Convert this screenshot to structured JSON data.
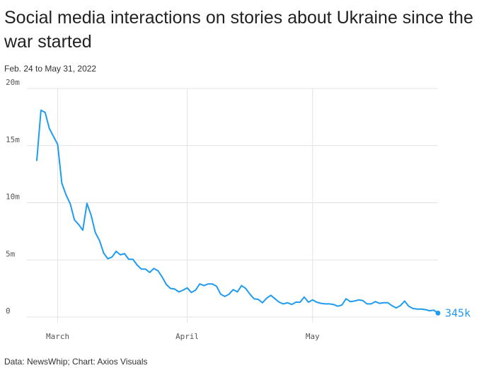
{
  "title": "Social media interactions on stories about Ukraine since the war started",
  "subtitle": "Feb. 24 to May 31, 2022",
  "source": "Data: NewsWhip; Chart: Axios Visuals",
  "colors": {
    "line": "#1f9bf0",
    "grid": "#e3e3e3",
    "text": "#222222"
  },
  "chart_data": {
    "type": "line",
    "title": "Social media interactions on stories about Ukraine since the war started",
    "subtitle": "Feb. 24 to May 31, 2022",
    "xlabel": "",
    "ylabel": "",
    "x_range": [
      "2022-02-24",
      "2022-05-31"
    ],
    "ylim": [
      0,
      20000000
    ],
    "y_ticks": [
      {
        "value": 0,
        "label": "0"
      },
      {
        "value": 5000000,
        "label": "5m"
      },
      {
        "value": 10000000,
        "label": "10m"
      },
      {
        "value": 15000000,
        "label": "15m"
      },
      {
        "value": 20000000,
        "label": "20m"
      }
    ],
    "x_ticks": [
      {
        "date": "2022-03-01",
        "label": "March"
      },
      {
        "date": "2022-04-01",
        "label": "April"
      },
      {
        "date": "2022-05-01",
        "label": "May"
      }
    ],
    "grid": true,
    "end_label": "345k",
    "series": [
      {
        "x": [
          "2022-02-24",
          "2022-02-25",
          "2022-02-26",
          "2022-02-27",
          "2022-02-28",
          "2022-03-01",
          "2022-03-02",
          "2022-03-03",
          "2022-03-04",
          "2022-03-05",
          "2022-03-06",
          "2022-03-07",
          "2022-03-08",
          "2022-03-09",
          "2022-03-10",
          "2022-03-11",
          "2022-03-12",
          "2022-03-13",
          "2022-03-14",
          "2022-03-15",
          "2022-03-16",
          "2022-03-17",
          "2022-03-18",
          "2022-03-19",
          "2022-03-20",
          "2022-03-21",
          "2022-03-22",
          "2022-03-23",
          "2022-03-24",
          "2022-03-25",
          "2022-03-26",
          "2022-03-27",
          "2022-03-28",
          "2022-03-29",
          "2022-03-30",
          "2022-03-31",
          "2022-04-01",
          "2022-04-02",
          "2022-04-03",
          "2022-04-04",
          "2022-04-05",
          "2022-04-06",
          "2022-04-07",
          "2022-04-08",
          "2022-04-09",
          "2022-04-10",
          "2022-04-11",
          "2022-04-12",
          "2022-04-13",
          "2022-04-14",
          "2022-04-15",
          "2022-04-16",
          "2022-04-17",
          "2022-04-18",
          "2022-04-19",
          "2022-04-20",
          "2022-04-21",
          "2022-04-22",
          "2022-04-23",
          "2022-04-24",
          "2022-04-25",
          "2022-04-26",
          "2022-04-27",
          "2022-04-28",
          "2022-04-29",
          "2022-04-30",
          "2022-05-01",
          "2022-05-02",
          "2022-05-03",
          "2022-05-04",
          "2022-05-05",
          "2022-05-06",
          "2022-05-07",
          "2022-05-08",
          "2022-05-09",
          "2022-05-10",
          "2022-05-11",
          "2022-05-12",
          "2022-05-13",
          "2022-05-14",
          "2022-05-15",
          "2022-05-16",
          "2022-05-17",
          "2022-05-18",
          "2022-05-19",
          "2022-05-20",
          "2022-05-21",
          "2022-05-22",
          "2022-05-23",
          "2022-05-24",
          "2022-05-25",
          "2022-05-26",
          "2022-05-27",
          "2022-05-28",
          "2022-05-29",
          "2022-05-30",
          "2022-05-31"
        ],
        "values": [
          13700000,
          18100000,
          17900000,
          16500000,
          15800000,
          15100000,
          11700000,
          10700000,
          9900000,
          8500000,
          8100000,
          7600000,
          9950000,
          8900000,
          7400000,
          6700000,
          5600000,
          5100000,
          5250000,
          5750000,
          5450000,
          5550000,
          5050000,
          5050000,
          4550000,
          4200000,
          4200000,
          3900000,
          4250000,
          4050000,
          3500000,
          2850000,
          2500000,
          2450000,
          2200000,
          2350000,
          2550000,
          2150000,
          2350000,
          2900000,
          2750000,
          2900000,
          2900000,
          2700000,
          2000000,
          1800000,
          2000000,
          2400000,
          2200000,
          2750000,
          2500000,
          2000000,
          1600000,
          1550000,
          1250000,
          1650000,
          1900000,
          1600000,
          1300000,
          1150000,
          1250000,
          1100000,
          1300000,
          1300000,
          1750000,
          1300000,
          1500000,
          1300000,
          1200000,
          1150000,
          1150000,
          1100000,
          950000,
          1050000,
          1600000,
          1350000,
          1400000,
          1500000,
          1450000,
          1150000,
          1150000,
          1350000,
          1200000,
          1250000,
          1250000,
          1000000,
          800000,
          1000000,
          1400000,
          950000,
          750000,
          700000,
          700000,
          650000,
          550000,
          600000,
          345000
        ]
      }
    ]
  }
}
